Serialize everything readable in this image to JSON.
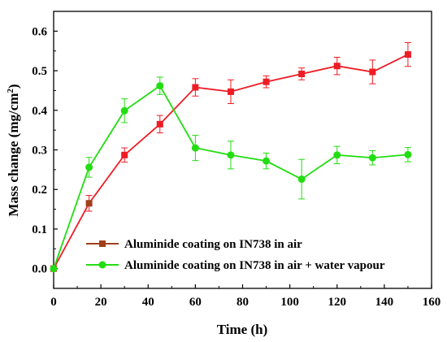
{
  "chart_data": {
    "type": "line",
    "xlabel": "Time (h)",
    "ylabel": "Mass change (mg/cm2)",
    "ylabel_main": "Mass change (mg/cm",
    "ylabel_sup": "2",
    "ylabel_tail": ")",
    "xlim": [
      0,
      160
    ],
    "ylim": [
      -0.05,
      0.65
    ],
    "xticks": [
      "0",
      "20",
      "40",
      "60",
      "80",
      "100",
      "120",
      "140",
      "160"
    ],
    "yticks": [
      "0.0",
      "0.1",
      "0.2",
      "0.3",
      "0.4",
      "0.5",
      "0.6"
    ],
    "grid": false,
    "legend_position": "bottom-left",
    "series": [
      {
        "name": "Aluminide coating on IN738 in air",
        "color": "#ee1c25",
        "marker": "square",
        "points": [
          {
            "x": 0,
            "y": 0.0,
            "err": 0.0
          },
          {
            "x": 15,
            "y": 0.165,
            "err": 0.02
          },
          {
            "x": 30,
            "y": 0.287,
            "err": 0.018
          },
          {
            "x": 45,
            "y": 0.365,
            "err": 0.022
          },
          {
            "x": 60,
            "y": 0.458,
            "err": 0.022
          },
          {
            "x": 75,
            "y": 0.447,
            "err": 0.03
          },
          {
            "x": 90,
            "y": 0.472,
            "err": 0.015
          },
          {
            "x": 105,
            "y": 0.492,
            "err": 0.015
          },
          {
            "x": 120,
            "y": 0.512,
            "err": 0.022
          },
          {
            "x": 135,
            "y": 0.497,
            "err": 0.03
          },
          {
            "x": 150,
            "y": 0.541,
            "err": 0.03
          }
        ]
      },
      {
        "name": "Aluminide coating on IN738 in air + water vapour",
        "color": "#22dd11",
        "marker": "circle",
        "points": [
          {
            "x": 0,
            "y": 0.0,
            "err": 0.0
          },
          {
            "x": 15,
            "y": 0.256,
            "err": 0.025
          },
          {
            "x": 30,
            "y": 0.399,
            "err": 0.03
          },
          {
            "x": 45,
            "y": 0.462,
            "err": 0.022
          },
          {
            "x": 60,
            "y": 0.305,
            "err": 0.032
          },
          {
            "x": 75,
            "y": 0.287,
            "err": 0.035
          },
          {
            "x": 90,
            "y": 0.272,
            "err": 0.02
          },
          {
            "x": 105,
            "y": 0.226,
            "err": 0.05
          },
          {
            "x": 120,
            "y": 0.287,
            "err": 0.022
          },
          {
            "x": 135,
            "y": 0.28,
            "err": 0.018
          },
          {
            "x": 150,
            "y": 0.288,
            "err": 0.018
          }
        ]
      }
    ],
    "first_marker_color": "#a0401c"
  }
}
